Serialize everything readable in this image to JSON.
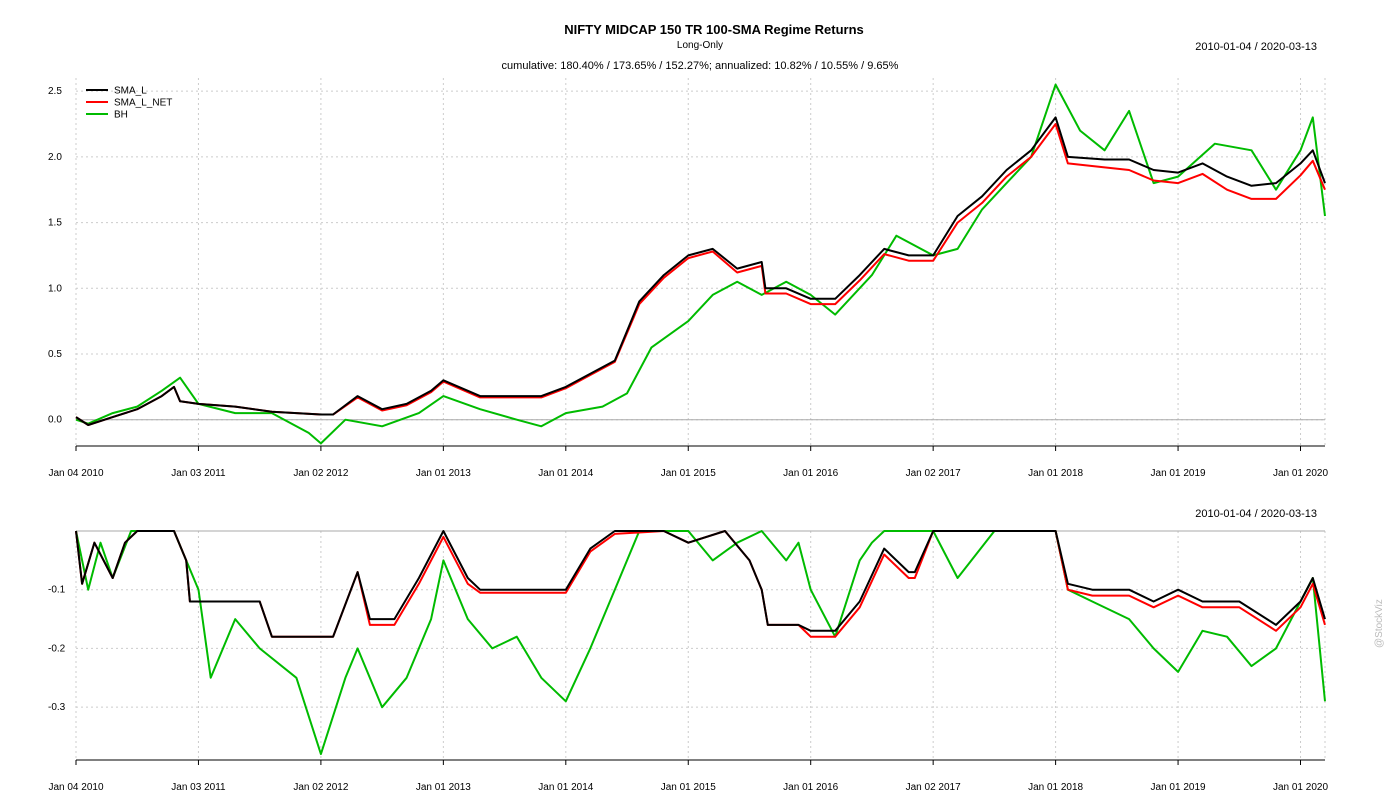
{
  "header": {
    "title": "NIFTY MIDCAP 150 TR 100-SMA Regime Returns",
    "subtitle": "Long-Only",
    "summary": "cumulative: 180.40% / 173.65% / 152.27%; annualized: 10.82% / 10.55% / 9.65%"
  },
  "watermark": "@StockViz",
  "colors": {
    "SMA_L": "#000000",
    "SMA_L_NET": "#ff0000",
    "BH": "#00bb00",
    "grid": "#cccccc",
    "axis": "#000000",
    "zero": "#aaaaaa"
  },
  "chart_data": [
    {
      "type": "line",
      "name": "cumulative-returns",
      "date_range": "2010-01-04 / 2020-03-13",
      "x_tick_labels": [
        "Jan 04 2010",
        "Jan 03 2011",
        "Jan 02 2012",
        "Jan 01 2013",
        "Jan 01 2014",
        "Jan 01 2015",
        "Jan 01 2016",
        "Jan 02 2017",
        "Jan 01 2018",
        "Jan 01 2019",
        "Jan 01 2020"
      ],
      "x_tick_years": [
        2010.0,
        2011.0,
        2012.0,
        2013.0,
        2014.0,
        2015.0,
        2016.0,
        2017.0,
        2018.0,
        2019.0,
        2020.0
      ],
      "xlim": [
        2010.0,
        2020.2
      ],
      "ylim": [
        -0.2,
        2.6
      ],
      "y_ticks": [
        0.0,
        0.5,
        1.0,
        1.5,
        2.0,
        2.5
      ],
      "y_tick_labels": [
        "0.0",
        "0.5",
        "1.0",
        "1.5",
        "2.0",
        "2.5"
      ],
      "legend": [
        "SMA_L",
        "SMA_L_NET",
        "BH"
      ],
      "legend_position": "top-left",
      "series": [
        {
          "name": "SMA_L",
          "x": [
            2010.0,
            2010.1,
            2010.3,
            2010.5,
            2010.7,
            2010.8,
            2010.85,
            2011.0,
            2011.3,
            2011.6,
            2012.0,
            2012.1,
            2012.3,
            2012.5,
            2012.7,
            2012.9,
            2013.0,
            2013.3,
            2013.6,
            2013.8,
            2014.0,
            2014.2,
            2014.4,
            2014.6,
            2014.8,
            2015.0,
            2015.2,
            2015.4,
            2015.6,
            2015.63,
            2015.8,
            2016.0,
            2016.2,
            2016.4,
            2016.6,
            2016.8,
            2017.0,
            2017.2,
            2017.4,
            2017.6,
            2017.8,
            2018.0,
            2018.1,
            2018.4,
            2018.6,
            2018.8,
            2019.0,
            2019.2,
            2019.4,
            2019.6,
            2019.8,
            2020.0,
            2020.1,
            2020.2
          ],
          "y": [
            0.02,
            -0.04,
            0.02,
            0.08,
            0.18,
            0.25,
            0.14,
            0.12,
            0.1,
            0.06,
            0.04,
            0.04,
            0.18,
            0.08,
            0.12,
            0.22,
            0.3,
            0.18,
            0.18,
            0.18,
            0.25,
            0.35,
            0.45,
            0.9,
            1.1,
            1.25,
            1.3,
            1.15,
            1.2,
            1.0,
            1.0,
            0.92,
            0.92,
            1.1,
            1.3,
            1.25,
            1.25,
            1.55,
            1.7,
            1.9,
            2.05,
            2.3,
            2.0,
            1.98,
            1.98,
            1.9,
            1.88,
            1.95,
            1.85,
            1.78,
            1.8,
            1.95,
            2.05,
            1.8
          ]
        },
        {
          "name": "SMA_L_NET",
          "x": [
            2010.0,
            2010.1,
            2010.3,
            2010.5,
            2010.7,
            2010.8,
            2010.85,
            2011.0,
            2011.3,
            2011.6,
            2012.0,
            2012.1,
            2012.3,
            2012.5,
            2012.7,
            2012.9,
            2013.0,
            2013.3,
            2013.6,
            2013.8,
            2014.0,
            2014.2,
            2014.4,
            2014.6,
            2014.8,
            2015.0,
            2015.2,
            2015.4,
            2015.6,
            2015.63,
            2015.8,
            2016.0,
            2016.2,
            2016.4,
            2016.6,
            2016.8,
            2017.0,
            2017.2,
            2017.4,
            2017.6,
            2017.8,
            2018.0,
            2018.1,
            2018.4,
            2018.6,
            2018.8,
            2019.0,
            2019.2,
            2019.4,
            2019.6,
            2019.8,
            2020.0,
            2020.1,
            2020.2
          ],
          "y": [
            0.02,
            -0.04,
            0.02,
            0.08,
            0.18,
            0.25,
            0.14,
            0.12,
            0.1,
            0.06,
            0.04,
            0.04,
            0.17,
            0.07,
            0.11,
            0.21,
            0.29,
            0.17,
            0.17,
            0.17,
            0.24,
            0.34,
            0.44,
            0.88,
            1.08,
            1.23,
            1.28,
            1.12,
            1.17,
            0.96,
            0.96,
            0.88,
            0.88,
            1.06,
            1.26,
            1.21,
            1.21,
            1.5,
            1.65,
            1.85,
            2.0,
            2.25,
            1.95,
            1.92,
            1.9,
            1.82,
            1.8,
            1.87,
            1.75,
            1.68,
            1.68,
            1.86,
            1.97,
            1.75
          ]
        },
        {
          "name": "BH",
          "x": [
            2010.0,
            2010.1,
            2010.3,
            2010.5,
            2010.7,
            2010.85,
            2011.0,
            2011.3,
            2011.6,
            2011.9,
            2012.0,
            2012.2,
            2012.5,
            2012.8,
            2013.0,
            2013.3,
            2013.6,
            2013.8,
            2014.0,
            2014.3,
            2014.5,
            2014.7,
            2015.0,
            2015.2,
            2015.4,
            2015.6,
            2015.8,
            2016.0,
            2016.2,
            2016.5,
            2016.7,
            2017.0,
            2017.2,
            2017.4,
            2017.6,
            2017.8,
            2018.0,
            2018.2,
            2018.4,
            2018.6,
            2018.8,
            2019.0,
            2019.3,
            2019.6,
            2019.8,
            2020.0,
            2020.1,
            2020.2
          ],
          "y": [
            0.0,
            -0.03,
            0.05,
            0.1,
            0.22,
            0.32,
            0.12,
            0.05,
            0.05,
            -0.1,
            -0.18,
            0.0,
            -0.05,
            0.05,
            0.18,
            0.08,
            0.0,
            -0.05,
            0.05,
            0.1,
            0.2,
            0.55,
            0.75,
            0.95,
            1.05,
            0.95,
            1.05,
            0.95,
            0.8,
            1.1,
            1.4,
            1.25,
            1.3,
            1.6,
            1.8,
            2.0,
            2.55,
            2.2,
            2.05,
            2.35,
            1.8,
            1.85,
            2.1,
            2.05,
            1.75,
            2.05,
            2.3,
            1.55
          ]
        }
      ]
    },
    {
      "type": "line",
      "name": "drawdowns",
      "date_range": "2010-01-04 / 2020-03-13",
      "x_tick_labels": [
        "Jan 04 2010",
        "Jan 03 2011",
        "Jan 02 2012",
        "Jan 01 2013",
        "Jan 01 2014",
        "Jan 01 2015",
        "Jan 01 2016",
        "Jan 02 2017",
        "Jan 01 2018",
        "Jan 01 2019",
        "Jan 01 2020"
      ],
      "x_tick_years": [
        2010.0,
        2011.0,
        2012.0,
        2013.0,
        2014.0,
        2015.0,
        2016.0,
        2017.0,
        2018.0,
        2019.0,
        2020.0
      ],
      "xlim": [
        2010.0,
        2020.2
      ],
      "ylim": [
        -0.39,
        0.0
      ],
      "y_ticks": [
        -0.1,
        -0.2,
        -0.3
      ],
      "y_tick_labels": [
        "-0.1",
        "-0.2",
        "-0.3"
      ],
      "series": [
        {
          "name": "SMA_L",
          "x": [
            2010.0,
            2010.05,
            2010.15,
            2010.3,
            2010.4,
            2010.5,
            2010.6,
            2010.8,
            2010.9,
            2010.93,
            2011.2,
            2011.5,
            2011.6,
            2012.0,
            2012.1,
            2012.3,
            2012.4,
            2012.6,
            2012.8,
            2013.0,
            2013.1,
            2013.2,
            2013.3,
            2013.6,
            2014.0,
            2014.2,
            2014.4,
            2014.8,
            2015.0,
            2015.3,
            2015.5,
            2015.6,
            2015.65,
            2015.9,
            2016.0,
            2016.2,
            2016.4,
            2016.6,
            2016.8,
            2016.85,
            2017.0,
            2017.3,
            2017.7,
            2018.0,
            2018.1,
            2018.3,
            2018.6,
            2018.8,
            2019.0,
            2019.2,
            2019.5,
            2019.8,
            2020.0,
            2020.1,
            2020.2
          ],
          "y": [
            0.0,
            -0.09,
            -0.02,
            -0.08,
            -0.02,
            0.0,
            0.0,
            0.0,
            -0.05,
            -0.12,
            -0.12,
            -0.12,
            -0.18,
            -0.18,
            -0.18,
            -0.07,
            -0.15,
            -0.15,
            -0.08,
            0.0,
            -0.04,
            -0.08,
            -0.1,
            -0.1,
            -0.1,
            -0.03,
            0.0,
            0.0,
            -0.02,
            0.0,
            -0.05,
            -0.1,
            -0.16,
            -0.16,
            -0.17,
            -0.17,
            -0.12,
            -0.03,
            -0.07,
            -0.07,
            0.0,
            0.0,
            0.0,
            0.0,
            -0.09,
            -0.1,
            -0.1,
            -0.12,
            -0.1,
            -0.12,
            -0.12,
            -0.16,
            -0.12,
            -0.08,
            -0.15
          ]
        },
        {
          "name": "SMA_L_NET",
          "x": [
            2010.0,
            2010.05,
            2010.15,
            2010.3,
            2010.4,
            2010.5,
            2010.6,
            2010.8,
            2010.9,
            2010.93,
            2011.2,
            2011.5,
            2011.6,
            2012.0,
            2012.1,
            2012.3,
            2012.4,
            2012.6,
            2012.8,
            2013.0,
            2013.1,
            2013.2,
            2013.3,
            2013.6,
            2014.0,
            2014.2,
            2014.4,
            2014.8,
            2015.0,
            2015.3,
            2015.5,
            2015.6,
            2015.65,
            2015.9,
            2016.0,
            2016.2,
            2016.4,
            2016.6,
            2016.8,
            2016.85,
            2017.0,
            2017.3,
            2017.7,
            2018.0,
            2018.1,
            2018.3,
            2018.6,
            2018.8,
            2019.0,
            2019.2,
            2019.5,
            2019.8,
            2020.0,
            2020.1,
            2020.2
          ],
          "y": [
            0.0,
            -0.09,
            -0.02,
            -0.08,
            -0.02,
            0.0,
            0.0,
            0.0,
            -0.05,
            -0.12,
            -0.12,
            -0.12,
            -0.18,
            -0.18,
            -0.18,
            -0.07,
            -0.16,
            -0.16,
            -0.09,
            -0.01,
            -0.05,
            -0.09,
            -0.105,
            -0.105,
            -0.105,
            -0.035,
            -0.005,
            0.0,
            -0.02,
            0.0,
            -0.05,
            -0.1,
            -0.16,
            -0.16,
            -0.18,
            -0.18,
            -0.13,
            -0.04,
            -0.08,
            -0.08,
            0.0,
            0.0,
            0.0,
            0.0,
            -0.1,
            -0.11,
            -0.11,
            -0.13,
            -0.11,
            -0.13,
            -0.13,
            -0.17,
            -0.13,
            -0.09,
            -0.16
          ]
        },
        {
          "name": "BH",
          "x": [
            2010.0,
            2010.1,
            2010.2,
            2010.3,
            2010.45,
            2010.6,
            2010.8,
            2010.9,
            2011.0,
            2011.1,
            2011.3,
            2011.5,
            2011.8,
            2012.0,
            2012.2,
            2012.3,
            2012.5,
            2012.7,
            2012.9,
            2013.0,
            2013.2,
            2013.4,
            2013.6,
            2013.8,
            2014.0,
            2014.2,
            2014.4,
            2014.6,
            2014.8,
            2015.0,
            2015.2,
            2015.4,
            2015.6,
            2015.8,
            2015.9,
            2016.0,
            2016.2,
            2016.4,
            2016.5,
            2016.6,
            2016.8,
            2017.0,
            2017.2,
            2017.5,
            2017.8,
            2018.0,
            2018.1,
            2018.3,
            2018.6,
            2018.8,
            2019.0,
            2019.2,
            2019.4,
            2019.6,
            2019.8,
            2020.0,
            2020.1,
            2020.2
          ],
          "y": [
            0.0,
            -0.1,
            -0.02,
            -0.08,
            0.0,
            0.0,
            0.0,
            -0.05,
            -0.1,
            -0.25,
            -0.15,
            -0.2,
            -0.25,
            -0.38,
            -0.25,
            -0.2,
            -0.3,
            -0.25,
            -0.15,
            -0.05,
            -0.15,
            -0.2,
            -0.18,
            -0.25,
            -0.29,
            -0.2,
            -0.1,
            0.0,
            0.0,
            0.0,
            -0.05,
            -0.02,
            0.0,
            -0.05,
            -0.02,
            -0.1,
            -0.18,
            -0.05,
            -0.02,
            0.0,
            0.0,
            0.0,
            -0.08,
            0.0,
            0.0,
            0.0,
            -0.1,
            -0.12,
            -0.15,
            -0.2,
            -0.24,
            -0.17,
            -0.18,
            -0.23,
            -0.2,
            -0.12,
            -0.08,
            -0.29
          ]
        }
      ]
    }
  ]
}
